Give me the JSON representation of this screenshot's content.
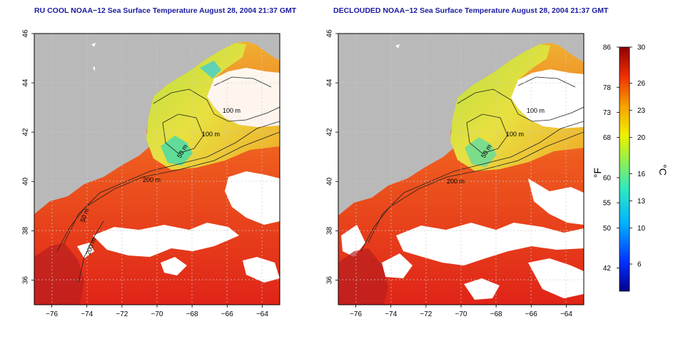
{
  "titles": {
    "left": "RU COOL NOAA−12 Sea Surface Temperature August 28, 2004 21:37 GMT",
    "right": "DECLOUDED NOAA−12 Sea Surface Temperature August 28, 2004 21:37 GMT"
  },
  "axes": {
    "lon_ticks": [
      "−76",
      "−74",
      "−72",
      "−70",
      "−68",
      "−66",
      "−64"
    ],
    "lon_values": [
      -76,
      -74,
      -72,
      -70,
      -68,
      -66,
      -64
    ],
    "lon_range": [
      -77,
      -63
    ],
    "lat_ticks": [
      "36",
      "38",
      "40",
      "42",
      "44",
      "46"
    ],
    "lat_values": [
      36,
      38,
      40,
      42,
      44,
      46
    ],
    "lat_range": [
      35,
      46
    ]
  },
  "contour_labels": {
    "left": [
      "100 m",
      "100 m",
      "50 m",
      "200 m",
      "50 m",
      "200 m"
    ],
    "right": [
      "100 m",
      "100 m",
      "50 m",
      "200 m"
    ]
  },
  "colorbar": {
    "f_ticks": [
      "86",
      "78",
      "73",
      "68",
      "60",
      "55",
      "50",
      "42"
    ],
    "f_values": [
      86,
      78,
      73,
      68,
      60,
      55,
      50,
      42
    ],
    "c_ticks": [
      "30",
      "26",
      "23",
      "20",
      "16",
      "13",
      "10",
      "6"
    ],
    "c_values": [
      30,
      26,
      23,
      20,
      16,
      13,
      10,
      6
    ],
    "f_unit": "°F",
    "c_unit": "°C",
    "range_c": [
      3,
      30
    ]
  },
  "colors": {
    "land": "#b9b9b9",
    "cloud": "#ffffff",
    "title": "#1a1aa0",
    "warm": "#e8321e",
    "cool": "#9cdc3c"
  }
}
